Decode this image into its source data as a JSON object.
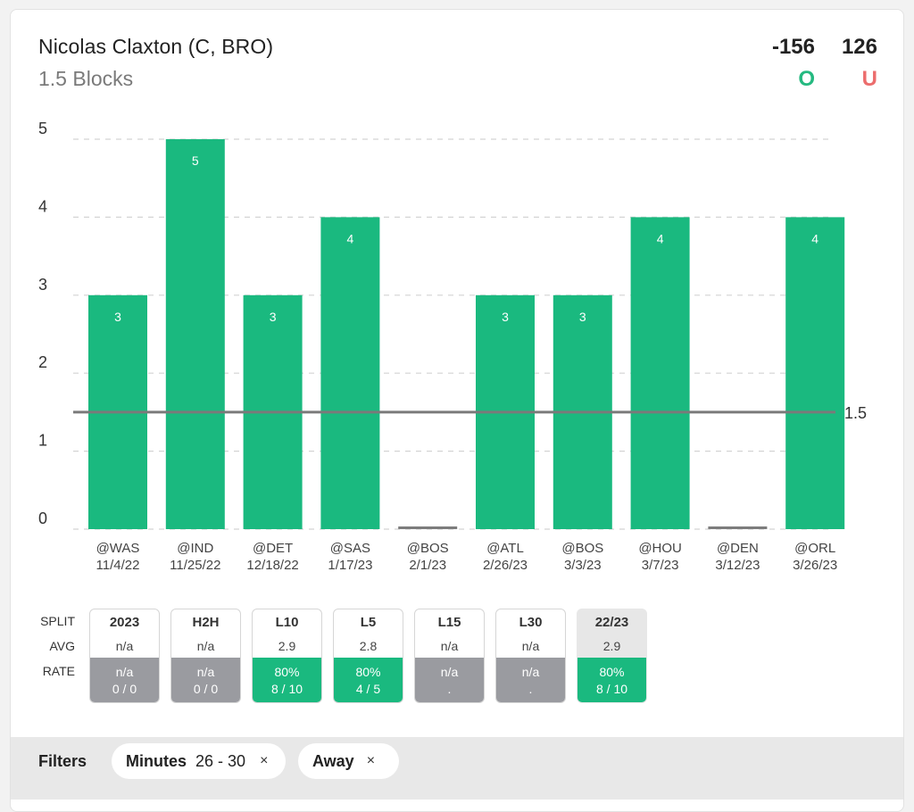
{
  "header": {
    "player": "Nicolas Claxton (C, BRO)",
    "prop": "1.5 Blocks",
    "over_odds": "-156",
    "under_odds": "126",
    "over_label": "O",
    "under_label": "U"
  },
  "colors": {
    "bar": "#1ab97f",
    "line": "#7a7a7a",
    "over": "#25b980",
    "under": "#ec6d6d",
    "rate_gray": "#9a9ba0"
  },
  "chart_data": {
    "type": "bar",
    "categories": [
      "@WAS",
      "@IND",
      "@DET",
      "@SAS",
      "@BOS",
      "@ATL",
      "@BOS",
      "@HOU",
      "@DEN",
      "@ORL"
    ],
    "dates": [
      "11/4/22",
      "11/25/22",
      "12/18/22",
      "1/17/23",
      "2/1/23",
      "2/26/23",
      "3/3/23",
      "3/7/23",
      "3/12/23",
      "3/26/23"
    ],
    "values": [
      3,
      5,
      3,
      4,
      0,
      3,
      3,
      4,
      0,
      4
    ],
    "data_labels": [
      "3",
      "5",
      "3",
      "4",
      "",
      "3",
      "3",
      "4",
      "",
      "4"
    ],
    "yticks": [
      "0",
      "1",
      "2",
      "3",
      "4",
      "5"
    ],
    "ylim": [
      0,
      5
    ],
    "reference_line": {
      "value": 1.5,
      "label": "1.5"
    },
    "grid": "dashed horizontal",
    "legend": "none"
  },
  "splits": {
    "row_labels": [
      "SPLIT",
      "AVG",
      "RATE"
    ],
    "columns": [
      {
        "name": "2023",
        "avg": "n/a",
        "rate": "n/a",
        "count": "0 / 0",
        "status": "gray"
      },
      {
        "name": "H2H",
        "avg": "n/a",
        "rate": "n/a",
        "count": "0 / 0",
        "status": "gray"
      },
      {
        "name": "L10",
        "avg": "2.9",
        "rate": "80%",
        "count": "8 / 10",
        "status": "green"
      },
      {
        "name": "L5",
        "avg": "2.8",
        "rate": "80%",
        "count": "4 / 5",
        "status": "green"
      },
      {
        "name": "L15",
        "avg": "n/a",
        "rate": "n/a",
        "count": ".",
        "status": "gray"
      },
      {
        "name": "L30",
        "avg": "n/a",
        "rate": "n/a",
        "count": ".",
        "status": "gray"
      },
      {
        "name": "22/23",
        "avg": "2.9",
        "rate": "80%",
        "count": "8 / 10",
        "status": "green",
        "active": true
      }
    ]
  },
  "filters": {
    "label": "Filters",
    "chips": [
      {
        "name": "Minutes",
        "value": "26 - 30",
        "close": "×"
      },
      {
        "name": "Away",
        "value": "",
        "close": "×"
      }
    ]
  }
}
